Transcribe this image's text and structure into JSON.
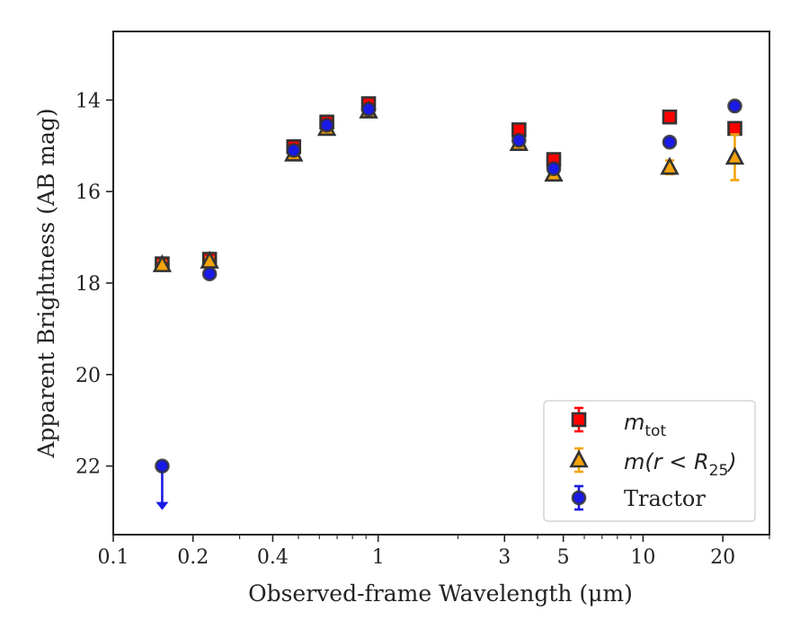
{
  "chart_data": {
    "type": "scatter",
    "xlabel": "Observed-frame Wavelength (μm)",
    "ylabel": "Apparent Brightness (AB mag)",
    "xscale": "log",
    "xlim": [
      0.1,
      30
    ],
    "ylim": [
      23.5,
      12.5
    ],
    "y_inverted": true,
    "x_tick_labels": [
      "0.1",
      "0.2",
      "0.4",
      "1",
      "3",
      "5",
      "10",
      "20"
    ],
    "x_ticks": [
      0.1,
      0.2,
      0.4,
      1,
      3,
      5,
      10,
      20
    ],
    "y_ticks": [
      14,
      16,
      18,
      20,
      22
    ],
    "y_tick_labels": [
      "14",
      "16",
      "18",
      "20",
      "22"
    ],
    "grid": false,
    "legend_placement": "bottom-right",
    "series": [
      {
        "name": "m_tot",
        "color": "#ff0000",
        "marker": "square",
        "points": [
          {
            "x": 0.153,
            "y": 17.58,
            "err": 0.08
          },
          {
            "x": 0.231,
            "y": 17.48,
            "err": 0.08
          },
          {
            "x": 0.48,
            "y": 15.02,
            "err": 0.08
          },
          {
            "x": 0.64,
            "y": 14.48,
            "err": 0.08
          },
          {
            "x": 0.92,
            "y": 14.08,
            "err": 0.08
          },
          {
            "x": 3.4,
            "y": 14.65,
            "err": 0.08
          },
          {
            "x": 4.6,
            "y": 15.3,
            "err": 0.08
          },
          {
            "x": 12.6,
            "y": 14.37,
            "err": 0.05
          },
          {
            "x": 22.2,
            "y": 14.62,
            "err": 0.08
          }
        ]
      },
      {
        "name": "m(r < R25)",
        "color": "#f5a30a",
        "marker": "triangle",
        "points": [
          {
            "x": 0.153,
            "y": 17.6,
            "err": 0.08
          },
          {
            "x": 0.231,
            "y": 17.52,
            "err": 0.08
          },
          {
            "x": 0.48,
            "y": 15.18,
            "err": 0.08
          },
          {
            "x": 0.64,
            "y": 14.62,
            "err": 0.08
          },
          {
            "x": 0.92,
            "y": 14.24,
            "err": 0.08
          },
          {
            "x": 3.4,
            "y": 14.95,
            "err": 0.08
          },
          {
            "x": 4.6,
            "y": 15.62,
            "err": 0.08
          },
          {
            "x": 12.6,
            "y": 15.47,
            "err": 0.15
          },
          {
            "x": 22.2,
            "y": 15.25,
            "err": 0.5
          }
        ]
      },
      {
        "name": "Tractor",
        "color": "#1a1ae6",
        "marker": "circle",
        "points": [
          {
            "x": 0.153,
            "y": 22.0,
            "upper_limit": true
          },
          {
            "x": 0.231,
            "y": 17.8,
            "err": 0.05
          },
          {
            "x": 0.48,
            "y": 15.1,
            "err": 0.05
          },
          {
            "x": 0.64,
            "y": 14.55,
            "err": 0.05
          },
          {
            "x": 0.92,
            "y": 14.2,
            "err": 0.05
          },
          {
            "x": 3.4,
            "y": 14.88,
            "err": 0.05
          },
          {
            "x": 4.6,
            "y": 15.5,
            "err": 0.05
          },
          {
            "x": 12.6,
            "y": 14.92,
            "err": 0.05
          },
          {
            "x": 22.2,
            "y": 14.13,
            "err": 0.05
          }
        ]
      }
    ],
    "legend": {
      "mtot_main": "m",
      "mtot_sub": "tot",
      "mr_main": "m(r < R",
      "mr_sub": "25",
      "mr_close": ")",
      "tractor": "Tractor"
    }
  }
}
